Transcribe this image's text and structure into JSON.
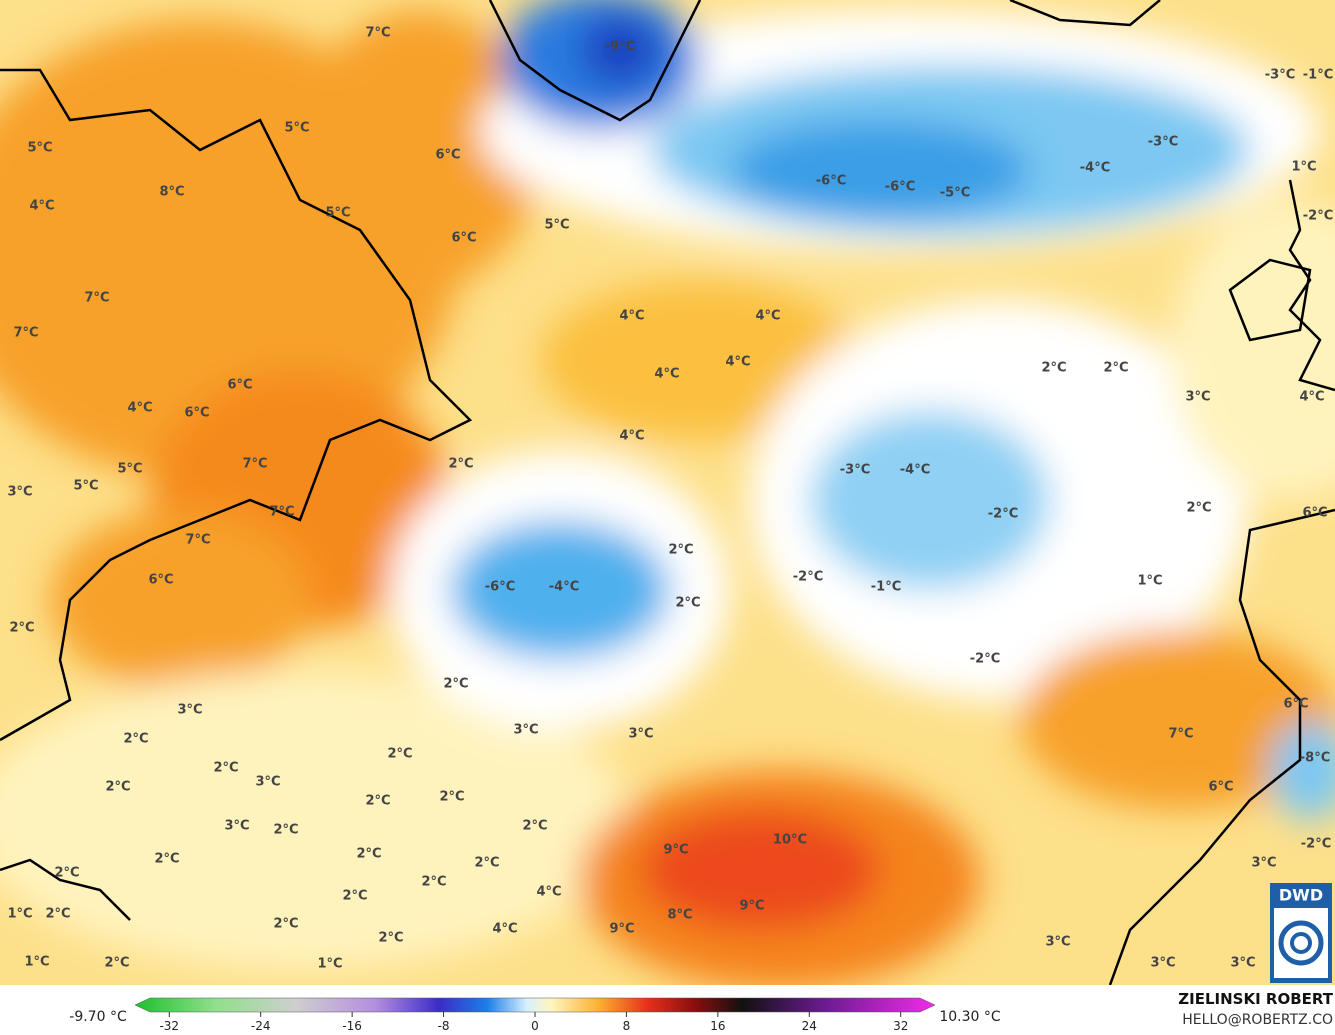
{
  "map": {
    "labels": [
      "7°C",
      "5°C",
      "6°C",
      "5°C",
      "8°C",
      "4°C",
      "5°C",
      "6°C",
      "5°C",
      "7°C",
      "4°C",
      "4°C",
      "7°C",
      "4°C",
      "4°C",
      "6°C",
      "4°C",
      "6°C",
      "4°C",
      "2°C",
      "7°C",
      "5°C",
      "5°C",
      "3°C",
      "7°C",
      "7°C",
      "6°C",
      "2°C",
      "-9°C",
      "-3°C",
      "-1°C",
      "-3°C",
      "-4°C",
      "-6°C",
      "-6°C",
      "-5°C",
      "1°C",
      "-2°C",
      "2°C",
      "2°C",
      "3°C",
      "4°C",
      "-3°C",
      "-4°C",
      "-2°C",
      "2°C",
      "6°C",
      "2°C",
      "-6°C",
      "-4°C",
      "-2°C",
      "-1°C",
      "1°C",
      "2°C",
      "-2°C",
      "2°C",
      "3°C",
      "6°C",
      "2°C",
      "3°C",
      "3°C",
      "7°C",
      "-8°C",
      "2°C",
      "2°C",
      "3°C",
      "2°C",
      "6°C",
      "2°C",
      "2°C",
      "3°C",
      "2°C",
      "2°C",
      "10°C",
      "9°C",
      "2°C",
      "2°C",
      "-2°C",
      "2°C",
      "3°C",
      "2°C",
      "2°C",
      "4°C",
      "9°C",
      "8°C",
      "2°C",
      "1°C",
      "2°C",
      "2°C",
      "4°C",
      "9°C",
      "2°C",
      "3°C",
      "1°C",
      "2°C",
      "1°C",
      "3°C",
      "3°C"
    ],
    "colorbar": {
      "min_label": "-9.70 °C",
      "max_label": "10.30 °C",
      "range": [
        -35,
        35
      ],
      "ticks": [
        -32,
        -24,
        -16,
        -8,
        0,
        8,
        16,
        24,
        32
      ]
    },
    "credit": {
      "author": "ZIELINSKI ROBERT",
      "contact": "HELLO@ROBERTZ.CO",
      "logo": "DWD"
    }
  }
}
